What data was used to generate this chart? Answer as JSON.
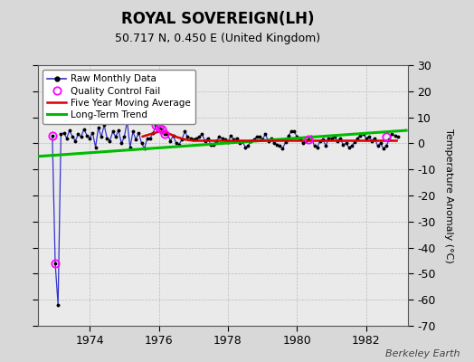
{
  "title": "ROYAL SOVEREIGN(LH)",
  "subtitle": "50.717 N, 0.450 E (United Kingdom)",
  "ylabel": "Temperature Anomaly (°C)",
  "credit": "Berkeley Earth",
  "xlim": [
    1972.5,
    1983.2
  ],
  "ylim": [
    -70,
    30
  ],
  "yticks": [
    -70,
    -60,
    -50,
    -40,
    -30,
    -20,
    -10,
    0,
    10,
    20,
    30
  ],
  "xticks": [
    1974,
    1976,
    1978,
    1980,
    1982
  ],
  "bg_color": "#d8d8d8",
  "plot_bg_color": "#eaeaea",
  "raw_color": "#3333cc",
  "dot_color": "#000000",
  "qc_color": "#ff00ff",
  "ma_color": "#dd0000",
  "trend_color": "#00bb00",
  "legend_labels": [
    "Raw Monthly Data",
    "Quality Control Fail",
    "Five Year Moving Average",
    "Long-Term Trend"
  ],
  "raw_x": [
    1972.917,
    1973.0,
    1973.083,
    1973.167,
    1973.25,
    1973.333,
    1973.417,
    1973.5,
    1973.583,
    1973.667,
    1973.75,
    1973.833,
    1973.917,
    1974.0,
    1974.083,
    1974.167,
    1974.25,
    1974.333,
    1974.417,
    1974.5,
    1974.583,
    1974.667,
    1974.75,
    1974.833,
    1974.917,
    1975.0,
    1975.083,
    1975.167,
    1975.25,
    1975.333,
    1975.417,
    1975.5,
    1975.583,
    1975.667,
    1975.75,
    1975.833,
    1975.917,
    1976.0,
    1976.083,
    1976.167,
    1976.25,
    1976.333,
    1976.417,
    1976.5,
    1976.583,
    1976.667,
    1976.75,
    1976.833,
    1976.917,
    1977.0,
    1977.083,
    1977.167,
    1977.25,
    1977.333,
    1977.417,
    1977.5,
    1977.583,
    1977.667,
    1977.75,
    1977.833,
    1977.917,
    1978.0,
    1978.083,
    1978.167,
    1978.25,
    1978.333,
    1978.417,
    1978.5,
    1978.583,
    1978.667,
    1978.75,
    1978.833,
    1978.917,
    1979.0,
    1979.083,
    1979.167,
    1979.25,
    1979.333,
    1979.417,
    1979.5,
    1979.583,
    1979.667,
    1979.75,
    1979.833,
    1979.917,
    1980.0,
    1980.083,
    1980.167,
    1980.25,
    1980.333,
    1980.417,
    1980.5,
    1980.583,
    1980.667,
    1980.75,
    1980.833,
    1980.917,
    1981.0,
    1981.083,
    1981.167,
    1981.25,
    1981.333,
    1981.417,
    1981.5,
    1981.583,
    1981.667,
    1981.75,
    1981.833,
    1981.917,
    1982.0,
    1982.083,
    1982.167,
    1982.25,
    1982.333,
    1982.417,
    1982.5,
    1982.583,
    1982.667,
    1982.75,
    1982.833,
    1982.917
  ],
  "raw_y": [
    3.0,
    -46.0,
    -62.0,
    3.5,
    4.0,
    2.0,
    5.0,
    2.5,
    1.0,
    3.5,
    2.5,
    5.5,
    3.0,
    2.0,
    4.0,
    -1.5,
    6.0,
    2.5,
    7.0,
    2.0,
    1.0,
    4.5,
    2.5,
    5.0,
    0.0,
    2.5,
    8.5,
    -1.5,
    4.5,
    1.5,
    4.0,
    0.0,
    -2.0,
    2.0,
    2.0,
    4.0,
    7.0,
    6.0,
    5.5,
    3.5,
    3.5,
    1.0,
    3.0,
    0.0,
    -0.5,
    1.5,
    4.5,
    2.5,
    2.0,
    1.5,
    2.0,
    2.5,
    3.5,
    1.0,
    2.0,
    -0.5,
    -0.5,
    1.0,
    2.5,
    2.0,
    1.5,
    0.5,
    3.0,
    1.5,
    2.0,
    0.0,
    1.0,
    -1.5,
    -1.0,
    1.0,
    1.5,
    2.5,
    2.5,
    1.5,
    3.5,
    1.0,
    2.0,
    0.0,
    -0.5,
    -1.0,
    -2.0,
    0.5,
    3.0,
    4.5,
    4.5,
    2.5,
    2.0,
    0.0,
    1.0,
    1.5,
    2.5,
    -1.0,
    -1.5,
    1.0,
    1.5,
    -1.0,
    2.0,
    2.0,
    2.5,
    1.0,
    2.0,
    -0.5,
    0.0,
    -1.5,
    -1.0,
    0.5,
    2.0,
    3.0,
    3.5,
    2.0,
    2.5,
    1.0,
    2.0,
    -1.0,
    0.0,
    -2.0,
    -1.0,
    1.5,
    3.5,
    3.0,
    2.5
  ],
  "qc_x": [
    1972.917,
    1973.0,
    1975.917,
    1976.0,
    1976.083,
    1976.167,
    1980.333,
    1982.583
  ],
  "qc_y": [
    3.0,
    -46.0,
    7.0,
    6.0,
    5.5,
    3.5,
    1.5,
    2.5
  ],
  "trend_x": [
    1972.5,
    1983.2
  ],
  "trend_y": [
    -5.0,
    5.0
  ],
  "ma_x": [
    1975.5,
    1975.75,
    1976.0,
    1976.25,
    1976.5,
    1976.75,
    1977.0,
    1977.5,
    1978.0,
    1978.5,
    1979.0,
    1979.5,
    1980.0,
    1980.5,
    1981.0,
    1981.5,
    1982.0,
    1982.917
  ],
  "ma_y": [
    2.5,
    3.5,
    4.5,
    4.0,
    2.5,
    1.5,
    1.0,
    1.0,
    1.0,
    1.0,
    1.0,
    1.0,
    1.0,
    1.0,
    1.0,
    1.0,
    1.0,
    1.0
  ]
}
